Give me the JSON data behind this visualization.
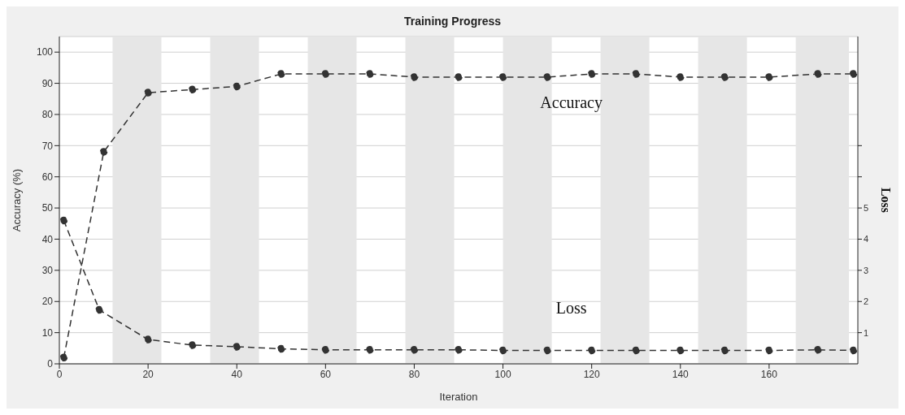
{
  "chart_data": {
    "type": "line",
    "title": "Training Progress",
    "xlabel": "Iteration",
    "ylabel": "Accuracy (%)",
    "y2label": "Loss",
    "series": [
      {
        "name": "Accuracy",
        "color": "#333333",
        "x": [
          1,
          10,
          20,
          30,
          40,
          50,
          60,
          70,
          80,
          90,
          100,
          110,
          120,
          130,
          140,
          150,
          160,
          171,
          179
        ],
        "values": [
          2,
          68,
          87,
          88,
          89,
          93,
          93,
          93,
          92,
          92,
          92,
          92,
          93,
          93,
          92,
          92,
          92,
          93,
          93
        ]
      },
      {
        "name": "Loss",
        "color": "#333333",
        "axis": "y2",
        "x": [
          1,
          9,
          20,
          30,
          40,
          50,
          60,
          70,
          80,
          90,
          100,
          110,
          120,
          130,
          140,
          150,
          160,
          171,
          179
        ],
        "values": [
          4.6,
          1.73,
          0.78,
          0.6,
          0.55,
          0.48,
          0.45,
          0.45,
          0.45,
          0.45,
          0.43,
          0.43,
          0.43,
          0.43,
          0.43,
          0.43,
          0.43,
          0.45,
          0.43
        ]
      }
    ],
    "bands": [
      {
        "axis": "x",
        "from": 12,
        "to": 23,
        "color": "#e6e6e6"
      },
      {
        "axis": "x",
        "from": 34,
        "to": 45,
        "color": "#e6e6e6"
      },
      {
        "axis": "x",
        "from": 56,
        "to": 67,
        "color": "#e6e6e6"
      },
      {
        "axis": "x",
        "from": 78,
        "to": 89,
        "color": "#e6e6e6"
      },
      {
        "axis": "x",
        "from": 100,
        "to": 111,
        "color": "#e6e6e6"
      },
      {
        "axis": "x",
        "from": 122,
        "to": 133,
        "color": "#e6e6e6"
      },
      {
        "axis": "x",
        "from": 144,
        "to": 155,
        "color": "#e6e6e6"
      },
      {
        "axis": "x",
        "from": 166,
        "to": 178,
        "color": "#e6e6e6"
      }
    ],
    "xlim": [
      0,
      180
    ],
    "xticks": [
      0,
      20,
      40,
      60,
      80,
      100,
      120,
      140,
      160
    ],
    "ylim": [
      0,
      105
    ],
    "yticks": [
      0,
      10,
      20,
      30,
      40,
      50,
      60,
      70,
      80,
      90,
      100
    ],
    "y2lim": [
      0,
      10.5
    ],
    "y2ticks": [
      1,
      2,
      3,
      4,
      5,
      {
        "value": 6,
        "label": null
      },
      {
        "value": 7,
        "label": null
      }
    ],
    "grid": "y",
    "marker": "circle",
    "line_style": "dashed",
    "legend": false
  }
}
